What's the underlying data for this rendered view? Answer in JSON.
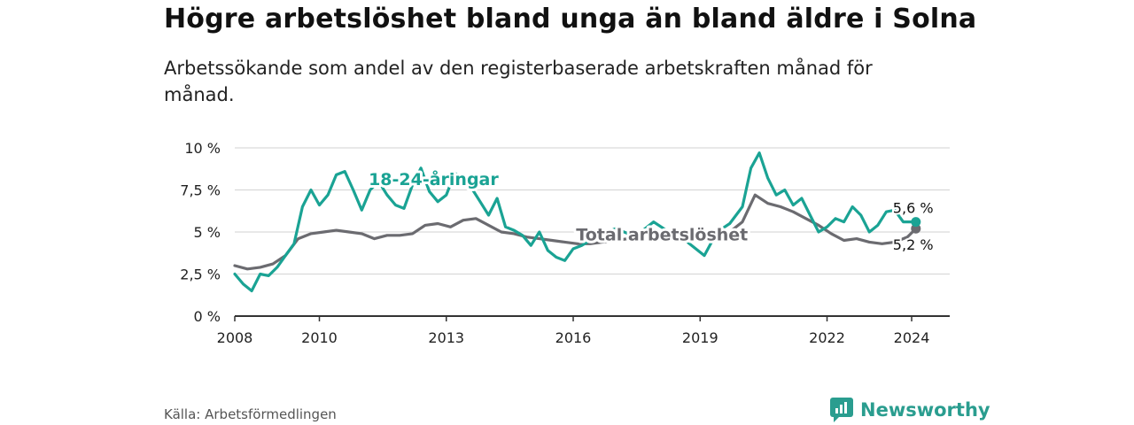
{
  "title": "Högre arbetslöshet bland unga än bland äldre i Solna",
  "subtitle": "Arbetssökande som andel av den registerbaserade arbetskraften månad för månad.",
  "source": "Källa: Arbetsförmedlingen",
  "brand": {
    "name": "Newsworthy",
    "icon": "newsworthy-logo-icon",
    "color": "#2a9d8f"
  },
  "chart_data": {
    "type": "line",
    "title": "Högre arbetslöshet bland unga än bland äldre i Solna",
    "xlabel": "",
    "ylabel": "",
    "xlim": [
      2008,
      2024.9
    ],
    "ylim": [
      0,
      10
    ],
    "grid": true,
    "x_ticks": [
      {
        "value": 2008,
        "label": "2008"
      },
      {
        "value": 2010,
        "label": "2010"
      },
      {
        "value": 2013,
        "label": "2013"
      },
      {
        "value": 2016,
        "label": "2016"
      },
      {
        "value": 2019,
        "label": "2019"
      },
      {
        "value": 2022,
        "label": "2022"
      },
      {
        "value": 2024,
        "label": "2024"
      }
    ],
    "y_ticks": [
      {
        "value": 0,
        "label": "0 %"
      },
      {
        "value": 2.5,
        "label": "2,5 %"
      },
      {
        "value": 5,
        "label": "5 %"
      },
      {
        "value": 7.5,
        "label": "7,5 %"
      },
      {
        "value": 10,
        "label": "10 %"
      }
    ],
    "series": [
      {
        "name": "Total arbetslöshet",
        "color": "#6b6b70",
        "end_label": "5,2 %",
        "x": [
          2008.0,
          2008.3,
          2008.6,
          2008.9,
          2009.2,
          2009.5,
          2009.8,
          2010.1,
          2010.4,
          2010.7,
          2011.0,
          2011.3,
          2011.6,
          2011.9,
          2012.2,
          2012.5,
          2012.8,
          2013.1,
          2013.4,
          2013.7,
          2014.0,
          2014.3,
          2014.6,
          2014.9,
          2015.2,
          2015.5,
          2015.8,
          2016.1,
          2016.4,
          2016.7,
          2017.0,
          2017.3,
          2017.6,
          2017.9,
          2018.2,
          2018.5,
          2018.8,
          2019.1,
          2019.4,
          2019.7,
          2020.0,
          2020.3,
          2020.6,
          2020.9,
          2021.2,
          2021.5,
          2021.8,
          2022.1,
          2022.4,
          2022.7,
          2023.0,
          2023.3,
          2023.6,
          2023.9,
          2024.1
        ],
        "values": [
          3.0,
          2.8,
          2.9,
          3.1,
          3.6,
          4.6,
          4.9,
          5.0,
          5.1,
          5.0,
          4.9,
          4.6,
          4.8,
          4.8,
          4.9,
          5.4,
          5.5,
          5.3,
          5.7,
          5.8,
          5.4,
          5.0,
          4.9,
          4.7,
          4.6,
          4.5,
          4.4,
          4.3,
          4.3,
          4.4,
          4.5,
          4.6,
          4.8,
          4.9,
          5.0,
          5.0,
          4.9,
          4.8,
          4.8,
          5.0,
          5.6,
          7.2,
          6.7,
          6.5,
          6.2,
          5.8,
          5.4,
          4.9,
          4.5,
          4.6,
          4.4,
          4.3,
          4.4,
          4.7,
          5.2
        ]
      },
      {
        "name": "18-24-åringar",
        "color": "#1aa394",
        "end_label": "5,6 %",
        "x": [
          2008.0,
          2008.2,
          2008.4,
          2008.6,
          2008.8,
          2009.0,
          2009.2,
          2009.4,
          2009.6,
          2009.8,
          2010.0,
          2010.2,
          2010.4,
          2010.6,
          2010.8,
          2011.0,
          2011.2,
          2011.4,
          2011.6,
          2011.8,
          2012.0,
          2012.2,
          2012.4,
          2012.6,
          2012.8,
          2013.0,
          2013.2,
          2013.4,
          2013.6,
          2013.8,
          2014.0,
          2014.2,
          2014.4,
          2014.6,
          2014.8,
          2015.0,
          2015.2,
          2015.4,
          2015.6,
          2015.8,
          2016.0,
          2016.2,
          2016.4,
          2016.6,
          2016.8,
          2017.0,
          2017.3,
          2017.6,
          2017.9,
          2018.2,
          2018.5,
          2018.8,
          2019.1,
          2019.4,
          2019.7,
          2020.0,
          2020.2,
          2020.4,
          2020.6,
          2020.8,
          2021.0,
          2021.2,
          2021.4,
          2021.6,
          2021.8,
          2022.0,
          2022.2,
          2022.4,
          2022.6,
          2022.8,
          2023.0,
          2023.2,
          2023.4,
          2023.6,
          2023.8,
          2024.0,
          2024.1
        ],
        "values": [
          2.5,
          1.9,
          1.5,
          2.5,
          2.4,
          2.9,
          3.6,
          4.3,
          6.5,
          7.5,
          6.6,
          7.2,
          8.4,
          8.6,
          7.5,
          6.3,
          7.5,
          8.0,
          7.2,
          6.6,
          6.4,
          7.8,
          8.8,
          7.4,
          6.8,
          7.2,
          8.5,
          8.2,
          7.6,
          6.8,
          6.0,
          7.0,
          5.3,
          5.1,
          4.8,
          4.2,
          5.0,
          3.9,
          3.5,
          3.3,
          4.0,
          4.2,
          4.5,
          4.8,
          5.0,
          5.2,
          4.9,
          5.0,
          5.6,
          5.1,
          4.8,
          4.2,
          3.6,
          5.0,
          5.5,
          6.5,
          8.8,
          9.7,
          8.2,
          7.2,
          7.5,
          6.6,
          7.0,
          6.0,
          5.0,
          5.3,
          5.8,
          5.6,
          6.5,
          6.0,
          5.0,
          5.4,
          6.2,
          6.3,
          5.6,
          5.6,
          5.6
        ]
      }
    ],
    "annotations": [
      {
        "text": "18-24-åringar",
        "series": "18-24-åringar",
        "x": 2012.7,
        "y": 7.8
      },
      {
        "text": "Total arbetslöshet",
        "series": "Total arbetslöshet",
        "x": 2018.1,
        "y": 4.5
      }
    ]
  }
}
